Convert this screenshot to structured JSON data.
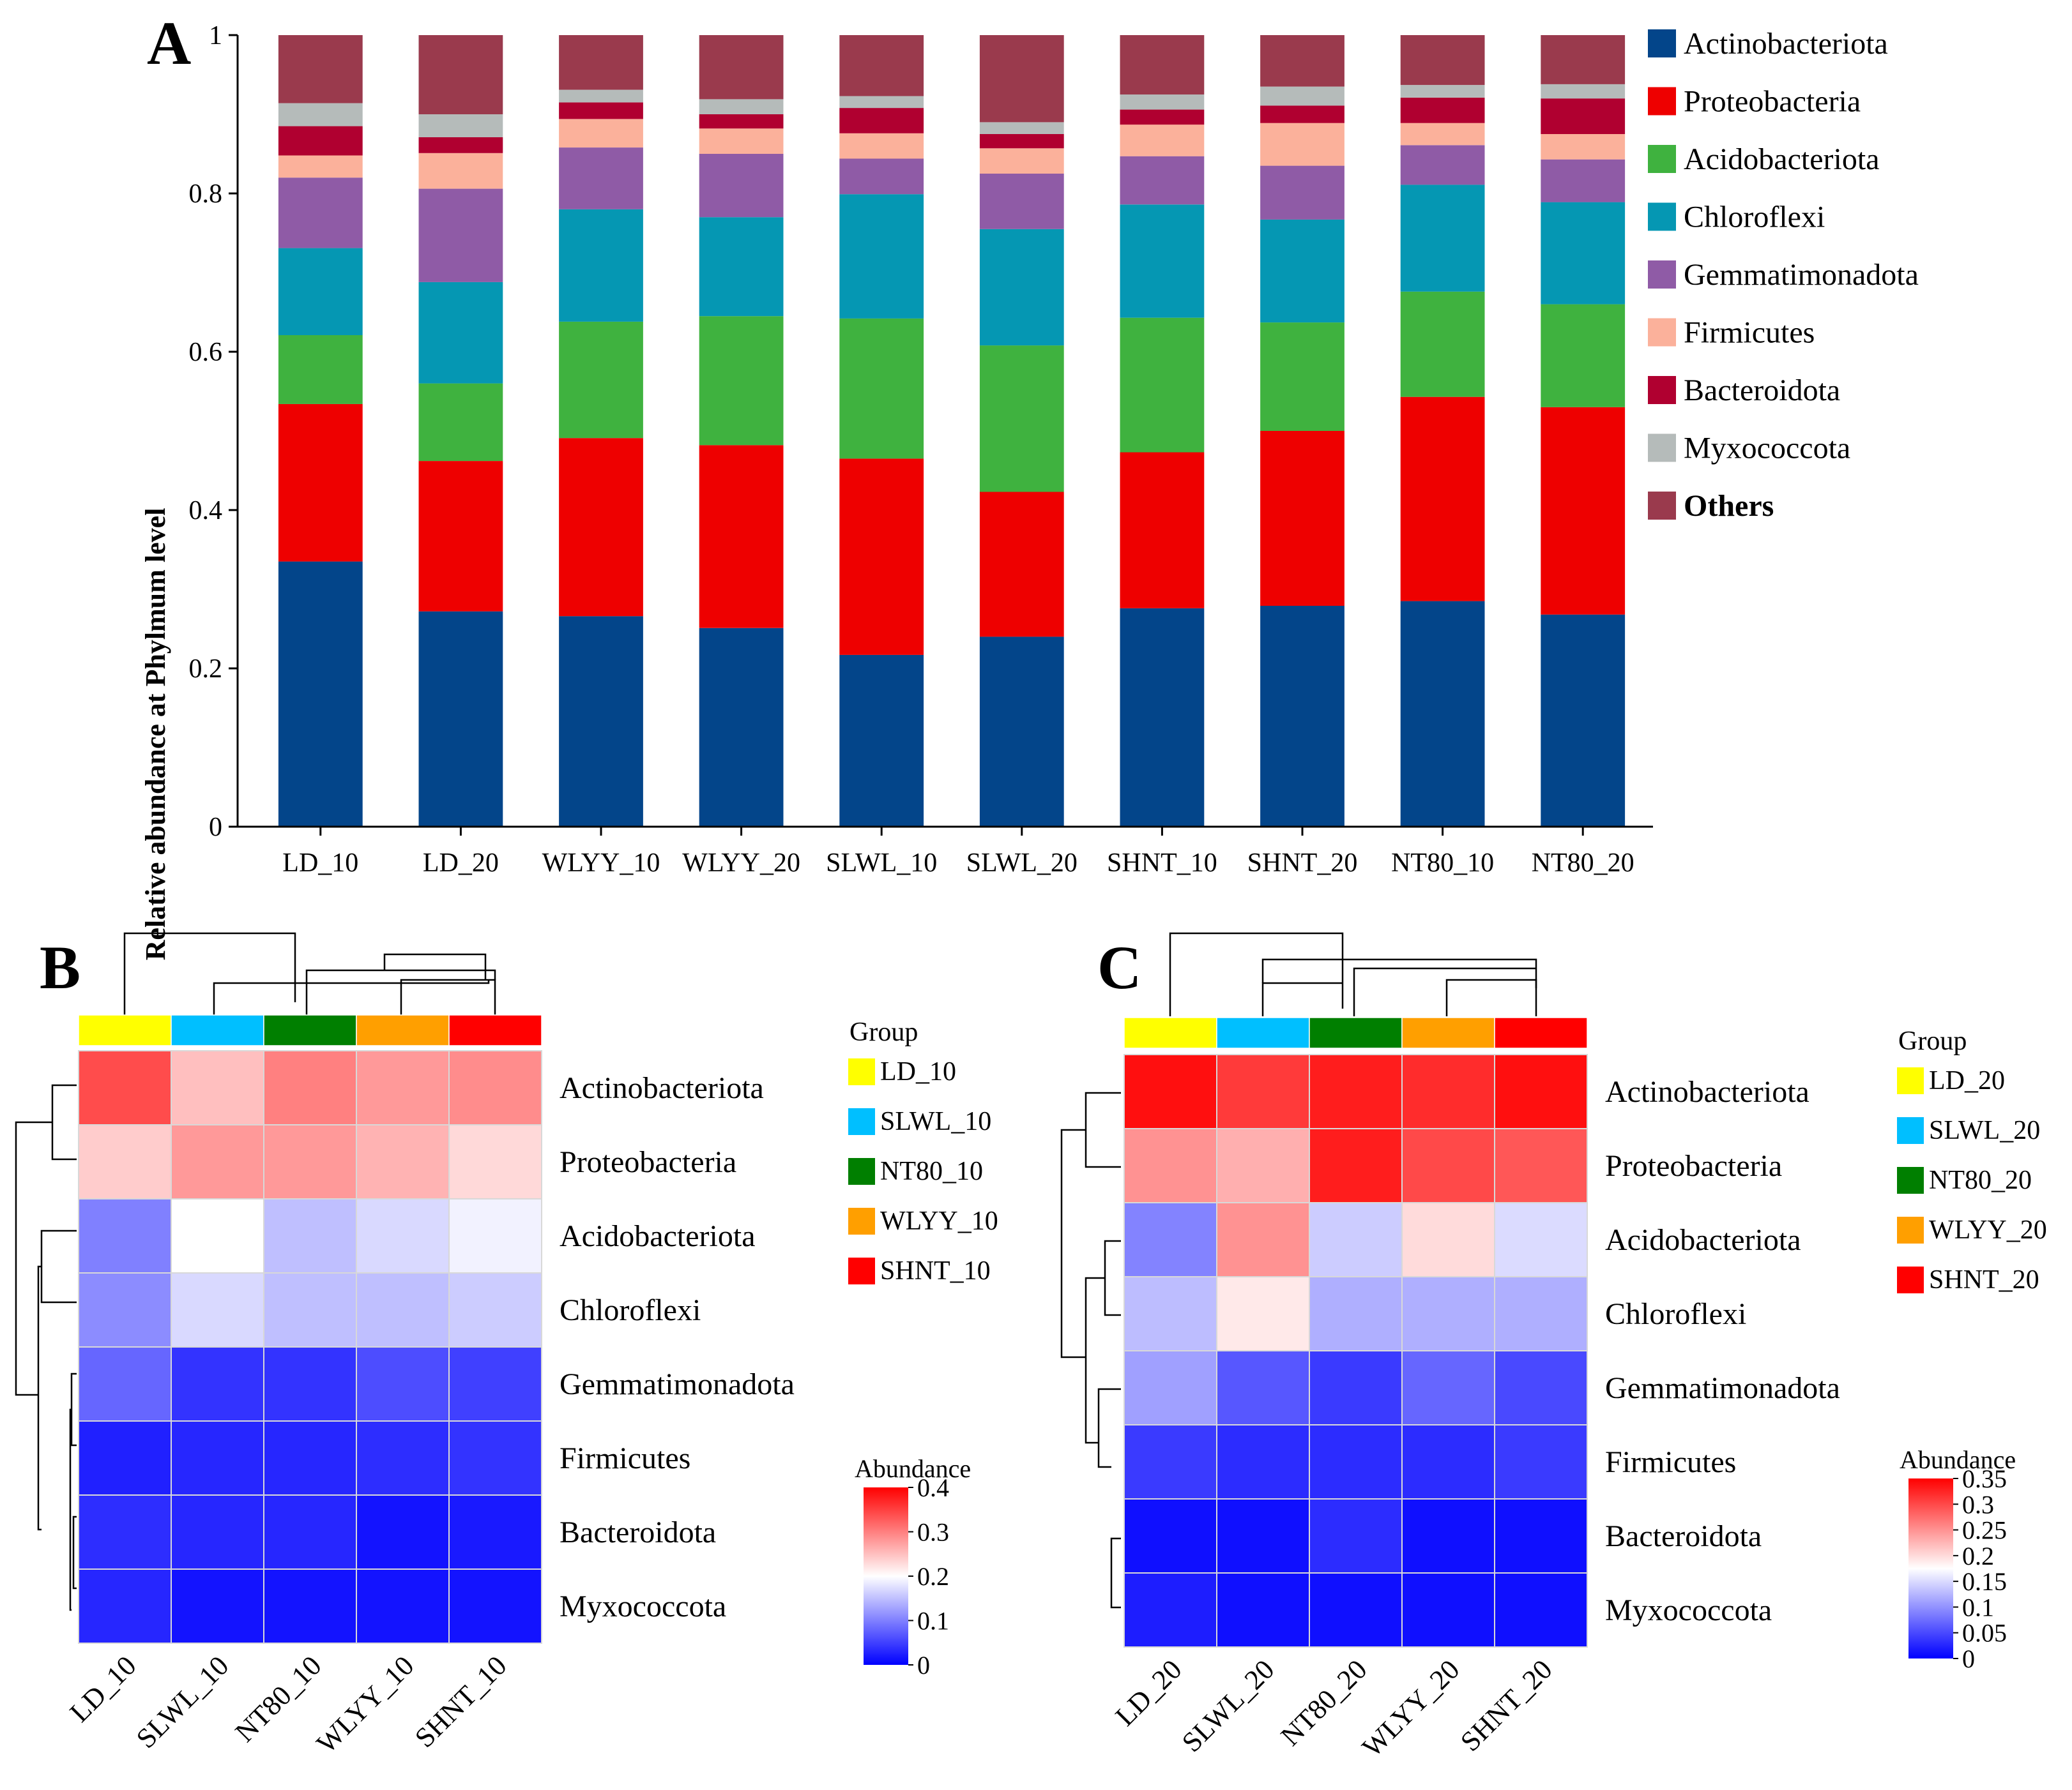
{
  "panels": {
    "a": "A",
    "b": "B",
    "c": "C"
  },
  "chart_data": [
    {
      "panel": "A",
      "type": "bar",
      "stacked": true,
      "title": "",
      "xlabel": "",
      "ylabel": "Relative abundance at Phylmum level",
      "ylim": [
        0,
        1
      ],
      "yticks": [
        "0",
        "0.2",
        "0.4",
        "0.6",
        "0.8",
        "1"
      ],
      "categories": [
        "LD_10",
        "LD_20",
        "WLYY_10",
        "WLYY_20",
        "SLWL_10",
        "SLWL_20",
        "SHNT_10",
        "SHNT_20",
        "NT80_10",
        "NT80_20"
      ],
      "legend_position": "right",
      "series": [
        {
          "name": "Actinobacteriota",
          "color": "#03458a",
          "bold": false,
          "values": [
            0.335,
            0.272,
            0.266,
            0.251,
            0.217,
            0.24,
            0.276,
            0.279,
            0.285,
            0.268
          ]
        },
        {
          "name": "Proteobacteria",
          "color": "#ee0000",
          "bold": false,
          "values": [
            0.199,
            0.19,
            0.225,
            0.231,
            0.248,
            0.183,
            0.197,
            0.221,
            0.258,
            0.262
          ]
        },
        {
          "name": "Acidobacteriota",
          "color": "#3fb23f",
          "bold": false,
          "values": [
            0.087,
            0.098,
            0.147,
            0.163,
            0.177,
            0.185,
            0.17,
            0.137,
            0.133,
            0.13
          ]
        },
        {
          "name": "Chloroflexi",
          "color": "#0597b3",
          "bold": false,
          "values": [
            0.11,
            0.128,
            0.142,
            0.125,
            0.157,
            0.147,
            0.143,
            0.13,
            0.135,
            0.129
          ]
        },
        {
          "name": "Gemmatimonadota",
          "color": "#8f5ba6",
          "bold": false,
          "values": [
            0.089,
            0.118,
            0.078,
            0.08,
            0.045,
            0.07,
            0.061,
            0.068,
            0.05,
            0.054
          ]
        },
        {
          "name": "Firmicutes",
          "color": "#fbb19b",
          "bold": false,
          "values": [
            0.028,
            0.045,
            0.036,
            0.032,
            0.032,
            0.032,
            0.04,
            0.054,
            0.028,
            0.032
          ]
        },
        {
          "name": "Bacteroidota",
          "color": "#b00030",
          "bold": false,
          "values": [
            0.037,
            0.02,
            0.021,
            0.018,
            0.032,
            0.018,
            0.019,
            0.022,
            0.032,
            0.045
          ]
        },
        {
          "name": "Myxococcota",
          "color": "#b5bbba",
          "bold": false,
          "values": [
            0.029,
            0.029,
            0.016,
            0.019,
            0.015,
            0.015,
            0.019,
            0.024,
            0.016,
            0.018
          ]
        },
        {
          "name": "Others",
          "color": "#9a3a4d",
          "bold": true,
          "values": [
            0.086,
            0.1,
            0.069,
            0.081,
            0.077,
            0.11,
            0.075,
            0.065,
            0.063,
            0.062
          ]
        }
      ]
    },
    {
      "panel": "B",
      "type": "heatmap",
      "columns": [
        "LD_10",
        "SLWL_10",
        "NT80_10",
        "WLYY_10",
        "SHNT_10"
      ],
      "rows": [
        "Actinobacteriota",
        "Proteobacteria",
        "Acidobacteriota",
        "Chloroflexi",
        "Gemmatimonadota",
        "Firmicutes",
        "Bacteroidota",
        "Myxococcota"
      ],
      "values": [
        [
          0.34,
          0.25,
          0.3,
          0.28,
          0.29
        ],
        [
          0.24,
          0.28,
          0.28,
          0.26,
          0.23
        ],
        [
          0.1,
          0.2,
          0.15,
          0.17,
          0.19
        ],
        [
          0.11,
          0.17,
          0.15,
          0.15,
          0.16
        ],
        [
          0.08,
          0.04,
          0.04,
          0.06,
          0.05
        ],
        [
          0.025,
          0.03,
          0.03,
          0.035,
          0.04
        ],
        [
          0.035,
          0.03,
          0.03,
          0.015,
          0.02
        ],
        [
          0.03,
          0.015,
          0.015,
          0.015,
          0.015
        ]
      ],
      "group_title": "Group",
      "groups": [
        {
          "name": "LD_10",
          "color": "#ffff00"
        },
        {
          "name": "SLWL_10",
          "color": "#00bfff"
        },
        {
          "name": "NT80_10",
          "color": "#007f00"
        },
        {
          "name": "WLYY_10",
          "color": "#ff9f00"
        },
        {
          "name": "SHNT_10",
          "color": "#ff0000"
        }
      ],
      "colorbar_title": "Abundance",
      "colorbar_range": [
        0,
        0.4
      ],
      "colorbar_mid": 0.2,
      "colorbar_ticks": [
        "0",
        "0.1",
        "0.2",
        "0.3",
        "0.4"
      ],
      "colorbar_tick_values": [
        0,
        0.1,
        0.2,
        0.3,
        0.4
      ]
    },
    {
      "panel": "C",
      "type": "heatmap",
      "columns": [
        "LD_20",
        "SLWL_20",
        "NT80_20",
        "WLYY_20",
        "SHNT_20"
      ],
      "rows": [
        "Actinobacteriota",
        "Proteobacteria",
        "Acidobacteriota",
        "Chloroflexi",
        "Gemmatimonadota",
        "Firmicutes",
        "Bacteroidota",
        "Myxococcota"
      ],
      "values": [
        [
          0.34,
          0.31,
          0.33,
          0.32,
          0.34
        ],
        [
          0.25,
          0.23,
          0.33,
          0.3,
          0.29
        ],
        [
          0.09,
          0.25,
          0.14,
          0.2,
          0.15
        ],
        [
          0.13,
          0.19,
          0.12,
          0.12,
          0.12
        ],
        [
          0.11,
          0.06,
          0.04,
          0.07,
          0.05
        ],
        [
          0.04,
          0.03,
          0.03,
          0.03,
          0.04
        ],
        [
          0.01,
          0.01,
          0.03,
          0.01,
          0.01
        ],
        [
          0.02,
          0.01,
          0.01,
          0.01,
          0.01
        ]
      ],
      "group_title": "Group",
      "groups": [
        {
          "name": "LD_20",
          "color": "#ffff00"
        },
        {
          "name": "SLWL_20",
          "color": "#00bfff"
        },
        {
          "name": "NT80_20",
          "color": "#007f00"
        },
        {
          "name": "WLYY_20",
          "color": "#ff9f00"
        },
        {
          "name": "SHNT_20",
          "color": "#ff0000"
        }
      ],
      "colorbar_title": "Abundance",
      "colorbar_range": [
        0,
        0.35
      ],
      "colorbar_mid": 0.175,
      "colorbar_ticks": [
        "0",
        "0.05",
        "0.1",
        "0.15",
        "0.2",
        "0.25",
        "0.3",
        "0.35"
      ],
      "colorbar_tick_values": [
        0,
        0.05,
        0.1,
        0.15,
        0.2,
        0.25,
        0.3,
        0.35
      ]
    }
  ]
}
